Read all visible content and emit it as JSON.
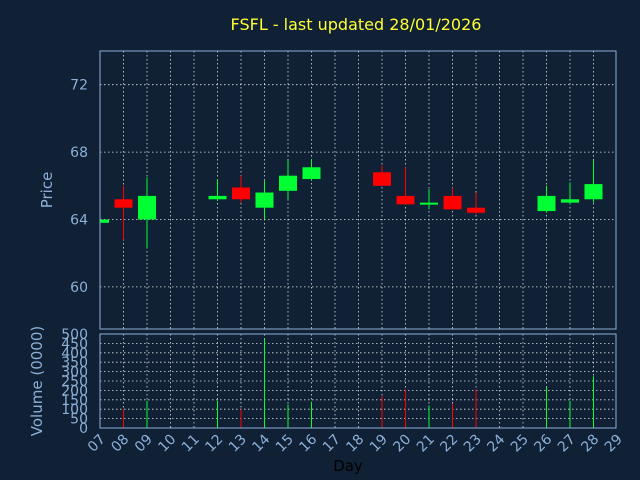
{
  "chart_data": [
    {
      "type": "candlestick",
      "title": "FSFL - last updated 28/01/2026",
      "ylabel": "Price",
      "ylim": [
        57.5,
        74
      ],
      "yticks": [
        60,
        64,
        68,
        72
      ],
      "grid": true,
      "up_color": "#00ff33",
      "down_color": "#ff0000",
      "candles": [
        {
          "day": "07",
          "open": 63.8,
          "high": 64.0,
          "low": 63.7,
          "close": 64.0
        },
        {
          "day": "08",
          "open": 65.2,
          "high": 66.0,
          "low": 62.8,
          "close": 64.7
        },
        {
          "day": "09",
          "open": 64.0,
          "high": 66.5,
          "low": 62.3,
          "close": 65.4
        },
        {
          "day": "12",
          "open": 65.2,
          "high": 66.4,
          "low": 65.1,
          "close": 65.4
        },
        {
          "day": "13",
          "open": 65.9,
          "high": 66.6,
          "low": 65.0,
          "close": 65.2
        },
        {
          "day": "14",
          "open": 64.7,
          "high": 66.3,
          "low": 64.0,
          "close": 65.6
        },
        {
          "day": "15",
          "open": 65.7,
          "high": 67.5,
          "low": 65.2,
          "close": 66.6
        },
        {
          "day": "16",
          "open": 66.4,
          "high": 67.6,
          "low": 66.3,
          "close": 67.1
        },
        {
          "day": "19",
          "open": 66.8,
          "high": 67.2,
          "low": 66.0,
          "close": 66.0
        },
        {
          "day": "20",
          "open": 65.4,
          "high": 67.1,
          "low": 64.9,
          "close": 64.9
        },
        {
          "day": "21",
          "open": 64.9,
          "high": 65.8,
          "low": 64.6,
          "close": 65.0
        },
        {
          "day": "22",
          "open": 65.4,
          "high": 65.9,
          "low": 64.6,
          "close": 64.6
        },
        {
          "day": "23",
          "open": 64.7,
          "high": 65.6,
          "low": 64.3,
          "close": 64.4
        },
        {
          "day": "26",
          "open": 64.5,
          "high": 66.0,
          "low": 64.4,
          "close": 65.4
        },
        {
          "day": "27",
          "open": 65.0,
          "high": 66.2,
          "low": 64.9,
          "close": 65.2
        },
        {
          "day": "28",
          "open": 65.2,
          "high": 67.5,
          "low": 65.0,
          "close": 66.1
        }
      ]
    },
    {
      "type": "bar",
      "ylabel": "Volume (0000)",
      "xlabel": "Day",
      "ylim": [
        0,
        500
      ],
      "yticks": [
        0,
        50,
        100,
        150,
        200,
        250,
        300,
        350,
        400,
        450,
        500
      ],
      "xticks": [
        "07",
        "08",
        "09",
        "10",
        "11",
        "12",
        "13",
        "14",
        "15",
        "16",
        "17",
        "18",
        "19",
        "20",
        "21",
        "22",
        "23",
        "24",
        "25",
        "26",
        "27",
        "28",
        "29"
      ],
      "bars": [
        {
          "day": "08",
          "value": 100,
          "color": "#ff0000"
        },
        {
          "day": "09",
          "value": 145,
          "color": "#00ff33"
        },
        {
          "day": "12",
          "value": 145,
          "color": "#00ff33"
        },
        {
          "day": "13",
          "value": 100,
          "color": "#ff0000"
        },
        {
          "day": "14",
          "value": 475,
          "color": "#00ff33"
        },
        {
          "day": "15",
          "value": 125,
          "color": "#00ff33"
        },
        {
          "day": "16",
          "value": 140,
          "color": "#00ff33"
        },
        {
          "day": "19",
          "value": 170,
          "color": "#ff0000"
        },
        {
          "day": "20",
          "value": 205,
          "color": "#ff0000"
        },
        {
          "day": "21",
          "value": 120,
          "color": "#00ff33"
        },
        {
          "day": "22",
          "value": 130,
          "color": "#ff0000"
        },
        {
          "day": "23",
          "value": 205,
          "color": "#ff0000"
        },
        {
          "day": "26",
          "value": 220,
          "color": "#00ff33"
        },
        {
          "day": "27",
          "value": 145,
          "color": "#00ff33"
        },
        {
          "day": "28",
          "value": 275,
          "color": "#00ff33"
        }
      ]
    }
  ]
}
